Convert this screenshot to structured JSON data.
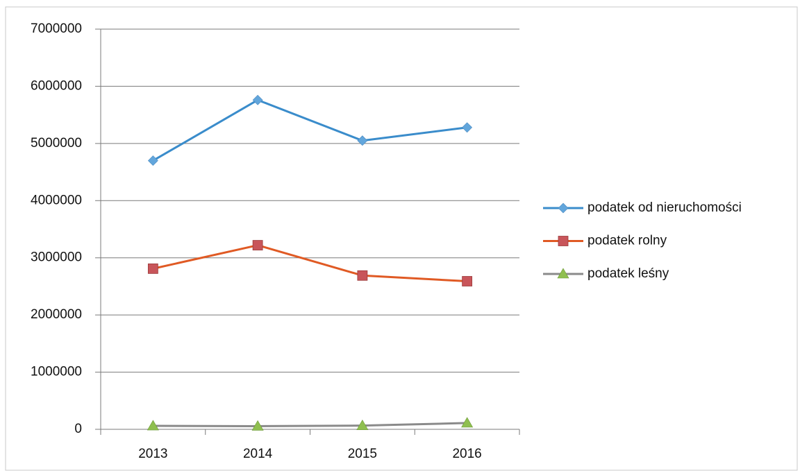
{
  "chart_data": {
    "type": "line",
    "categories": [
      "2013",
      "2014",
      "2015",
      "2016"
    ],
    "series": [
      {
        "name": "podatek od nieruchomości",
        "color": "#3a8ccb",
        "marker_color": "#62a6dc",
        "marker": "diamond",
        "values": [
          4700000,
          5760000,
          5050000,
          5280000
        ]
      },
      {
        "name": "podatek rolny",
        "color": "#e05a24",
        "marker_color": "#c8555a",
        "marker": "square",
        "values": [
          2810000,
          3220000,
          2690000,
          2590000
        ]
      },
      {
        "name": "podatek leśny",
        "color": "#8a8a8a",
        "marker_color": "#8fbf4f",
        "marker": "triangle",
        "values": [
          60000,
          55000,
          65000,
          110000
        ]
      }
    ],
    "ylim": [
      0,
      7000000
    ],
    "yticks": [
      0,
      1000000,
      2000000,
      3000000,
      4000000,
      5000000,
      6000000,
      7000000
    ],
    "grid": true,
    "legend": "right"
  }
}
